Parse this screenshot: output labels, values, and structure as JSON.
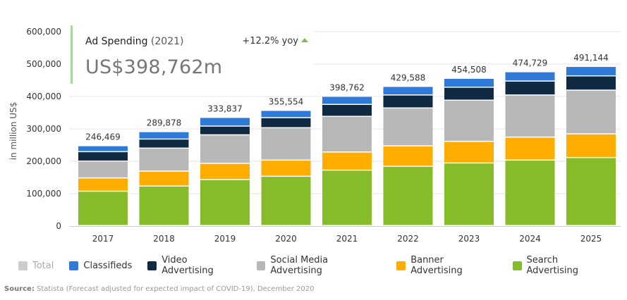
{
  "kpi": {
    "title": "Ad Spending",
    "year": "(2021)",
    "yoy": "+12.2% yoy",
    "value": "US$398,762m"
  },
  "legend": [
    {
      "label": "Total",
      "color": "#cccccc",
      "muted": true
    },
    {
      "label": "Classifieds",
      "color": "#2f7ad9"
    },
    {
      "label": "Video Advertising",
      "color": "#102a43"
    },
    {
      "label": "Social Media Advertising",
      "color": "#b8b8b8"
    },
    {
      "label": "Banner Advertising",
      "color": "#ffad00"
    },
    {
      "label": "Search Advertising",
      "color": "#86bc2a"
    }
  ],
  "source": {
    "label": "Source:",
    "text": "Statista (Forecast adjusted for expected impact of COVID-19), December 2020"
  },
  "chart_data": {
    "type": "bar",
    "stacked": true,
    "ylabel": "in million US$",
    "ylim": [
      0,
      600000
    ],
    "yticks": [
      "0",
      "100,000",
      "200,000",
      "300,000",
      "400,000",
      "500,000",
      "600,000"
    ],
    "categories": [
      "2017",
      "2018",
      "2019",
      "2020",
      "2021",
      "2022",
      "2023",
      "2024",
      "2025"
    ],
    "totals": [
      "246,469",
      "289,878",
      "333,837",
      "355,554",
      "398,762",
      "429,588",
      "454,508",
      "474,729",
      "491,144"
    ],
    "series": [
      {
        "name": "Search Advertising",
        "color": "#86bc2a",
        "values": [
          106000,
          122000,
          142000,
          152000,
          171000,
          183000,
          193000,
          202000,
          210000
        ]
      },
      {
        "name": "Banner Advertising",
        "color": "#ffad00",
        "values": [
          41000,
          46000,
          50000,
          50000,
          56000,
          63000,
          67000,
          71000,
          73000
        ]
      },
      {
        "name": "Social Media Advertising",
        "color": "#b8b8b8",
        "values": [
          52000,
          71000,
          88000,
          100000,
          110000,
          117000,
          127000,
          130000,
          135000
        ]
      },
      {
        "name": "Video Advertising",
        "color": "#102a43",
        "values": [
          29000,
          28000,
          27000,
          31000,
          37000,
          40000,
          40000,
          43000,
          44000
        ]
      },
      {
        "name": "Classifieds",
        "color": "#2f7ad9",
        "values": [
          18469,
          22878,
          26837,
          22554,
          24762,
          26588,
          27508,
          28729,
          29144
        ]
      }
    ]
  }
}
